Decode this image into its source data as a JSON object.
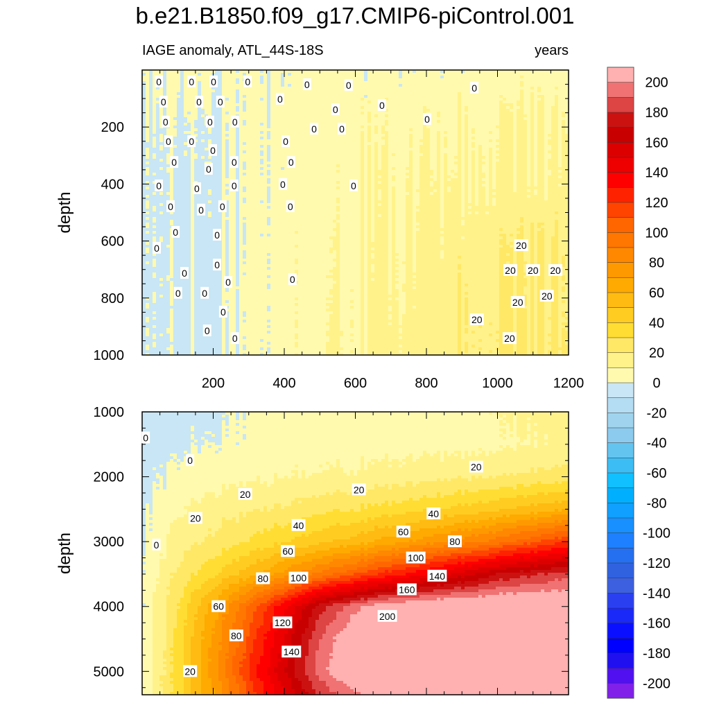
{
  "title": "b.e21.B1850.f09_g17.CMIP6-piControl.001",
  "subtitle_left": "IAGE anomaly, ATL_44S-18S",
  "subtitle_right": "years",
  "chart_data": {
    "type": "heatmap",
    "style": "filled contour",
    "ylabel": "depth",
    "xlim": [
      0,
      1200
    ],
    "x_ticks": [
      "200",
      "400",
      "600",
      "800",
      "1000",
      "1200"
    ],
    "x": [
      0,
      100,
      200,
      300,
      400,
      500,
      600,
      700,
      800,
      900,
      1000,
      1100,
      1200
    ],
    "panels": [
      {
        "name": "upper",
        "ylim": [
          0,
          1000
        ],
        "y_reversed": true,
        "y_ticks": [
          "200",
          "400",
          "600",
          "800",
          "1000"
        ],
        "depth": [
          0,
          200,
          400,
          600,
          800,
          1000
        ],
        "values": [
          [
            2,
            2,
            2,
            3,
            3,
            3,
            4,
            4,
            4,
            5,
            5,
            5,
            5
          ],
          [
            -2,
            -2,
            -2,
            3,
            4,
            5,
            6,
            7,
            8,
            9,
            10,
            10,
            10
          ],
          [
            -3,
            -3,
            -2,
            3,
            4,
            5,
            7,
            9,
            11,
            12,
            12,
            12,
            12
          ],
          [
            -3,
            -3,
            -3,
            3,
            5,
            6,
            9,
            11,
            13,
            15,
            18,
            19,
            19
          ],
          [
            -3,
            -3,
            -3,
            4,
            5,
            7,
            10,
            12,
            15,
            18,
            20,
            20,
            19
          ],
          [
            -3,
            -3,
            -3,
            2,
            5,
            8,
            11,
            14,
            16,
            18,
            21,
            22,
            21
          ]
        ],
        "contour_labels": [
          {
            "text": "0",
            "x": 47,
            "depth": 41
          },
          {
            "text": "0",
            "x": 139,
            "depth": 41
          },
          {
            "text": "0",
            "x": 201,
            "depth": 41
          },
          {
            "text": "0",
            "x": 297,
            "depth": 41
          },
          {
            "text": "0",
            "x": 464,
            "depth": 51
          },
          {
            "text": "0",
            "x": 581,
            "depth": 54
          },
          {
            "text": "0",
            "x": 935,
            "depth": 63
          },
          {
            "text": "0",
            "x": 60,
            "depth": 112
          },
          {
            "text": "0",
            "x": 160,
            "depth": 112
          },
          {
            "text": "0",
            "x": 220,
            "depth": 112
          },
          {
            "text": "0",
            "x": 388,
            "depth": 102
          },
          {
            "text": "0",
            "x": 544,
            "depth": 139
          },
          {
            "text": "0",
            "x": 675,
            "depth": 124
          },
          {
            "text": "0",
            "x": 66,
            "depth": 182
          },
          {
            "text": "0",
            "x": 191,
            "depth": 182
          },
          {
            "text": "0",
            "x": 261,
            "depth": 182
          },
          {
            "text": "0",
            "x": 484,
            "depth": 207
          },
          {
            "text": "0",
            "x": 562,
            "depth": 207
          },
          {
            "text": "0",
            "x": 802,
            "depth": 173
          },
          {
            "text": "0",
            "x": 74,
            "depth": 251
          },
          {
            "text": "0",
            "x": 139,
            "depth": 251
          },
          {
            "text": "0",
            "x": 199,
            "depth": 282
          },
          {
            "text": "0",
            "x": 404,
            "depth": 251
          },
          {
            "text": "0",
            "x": 90,
            "depth": 324
          },
          {
            "text": "0",
            "x": 187,
            "depth": 348
          },
          {
            "text": "0",
            "x": 259,
            "depth": 324
          },
          {
            "text": "0",
            "x": 419,
            "depth": 324
          },
          {
            "text": "0",
            "x": 47,
            "depth": 406
          },
          {
            "text": "0",
            "x": 154,
            "depth": 416
          },
          {
            "text": "0",
            "x": 259,
            "depth": 406
          },
          {
            "text": "0",
            "x": 396,
            "depth": 401
          },
          {
            "text": "0",
            "x": 595,
            "depth": 406
          },
          {
            "text": "0",
            "x": 80,
            "depth": 479
          },
          {
            "text": "0",
            "x": 166,
            "depth": 491
          },
          {
            "text": "0",
            "x": 226,
            "depth": 479
          },
          {
            "text": "0",
            "x": 417,
            "depth": 479
          },
          {
            "text": "0",
            "x": 94,
            "depth": 569
          },
          {
            "text": "0",
            "x": 211,
            "depth": 579
          },
          {
            "text": "0",
            "x": 41,
            "depth": 625
          },
          {
            "text": "0",
            "x": 119,
            "depth": 713
          },
          {
            "text": "0",
            "x": 211,
            "depth": 684
          },
          {
            "text": "0",
            "x": 242,
            "depth": 745
          },
          {
            "text": "0",
            "x": 423,
            "depth": 735
          },
          {
            "text": "0",
            "x": 101,
            "depth": 783
          },
          {
            "text": "0",
            "x": 176,
            "depth": 783
          },
          {
            "text": "0",
            "x": 228,
            "depth": 849
          },
          {
            "text": "0",
            "x": 183,
            "depth": 915
          },
          {
            "text": "0",
            "x": 261,
            "depth": 942
          },
          {
            "text": "20",
            "x": 1067,
            "depth": 616
          },
          {
            "text": "20",
            "x": 1036,
            "depth": 703
          },
          {
            "text": "20",
            "x": 1100,
            "depth": 703
          },
          {
            "text": "20",
            "x": 1163,
            "depth": 703
          },
          {
            "text": "20",
            "x": 1057,
            "depth": 815
          },
          {
            "text": "20",
            "x": 1139,
            "depth": 793
          },
          {
            "text": "20",
            "x": 942,
            "depth": 876
          },
          {
            "text": "20",
            "x": 1034,
            "depth": 942
          }
        ]
      },
      {
        "name": "lower",
        "ylim": [
          1000,
          5360
        ],
        "y_reversed": true,
        "y_ticks": [
          "1000",
          "2000",
          "3000",
          "4000",
          "5000"
        ],
        "depth": [
          1000,
          1500,
          2000,
          2500,
          3000,
          3500,
          4000,
          4500,
          5000,
          5360
        ],
        "values": [
          [
            -3,
            -3,
            -2,
            1,
            3,
            4,
            4,
            5,
            6,
            8,
            10,
            12,
            15
          ],
          [
            -3,
            -2,
            0,
            2,
            4,
            5,
            5,
            6,
            6,
            7,
            8,
            10,
            12
          ],
          [
            -3,
            2,
            6,
            8,
            10,
            11,
            12,
            14,
            17,
            19,
            20,
            22,
            25
          ],
          [
            -2,
            8,
            15,
            18,
            22,
            26,
            30,
            34,
            38,
            43,
            48,
            54,
            60
          ],
          [
            -2,
            15,
            22,
            30,
            40,
            47,
            55,
            65,
            75,
            85,
            95,
            108,
            120
          ],
          [
            0,
            22,
            38,
            55,
            75,
            92,
            110,
            125,
            140,
            155,
            170,
            178,
            185
          ],
          [
            0,
            30,
            65,
            100,
            138,
            175,
            198,
            210,
            215,
            218,
            218,
            218,
            218
          ],
          [
            0,
            33,
            72,
            112,
            152,
            190,
            212,
            220,
            220,
            220,
            220,
            220,
            220
          ],
          [
            0,
            35,
            75,
            120,
            160,
            195,
            215,
            220,
            220,
            220,
            220,
            220,
            220
          ],
          [
            0,
            35,
            70,
            110,
            150,
            180,
            198,
            212,
            220,
            220,
            220,
            220,
            220
          ]
        ],
        "contour_labels": [
          {
            "text": "0",
            "x": 10,
            "depth": 1400
          },
          {
            "text": "0",
            "x": 135,
            "depth": 1750
          },
          {
            "text": "20",
            "x": 290,
            "depth": 2270
          },
          {
            "text": "20",
            "x": 150,
            "depth": 2640
          },
          {
            "text": "20",
            "x": 610,
            "depth": 2200
          },
          {
            "text": "20",
            "x": 940,
            "depth": 1850
          },
          {
            "text": "40",
            "x": 440,
            "depth": 2750
          },
          {
            "text": "40",
            "x": 820,
            "depth": 2570
          },
          {
            "text": "60",
            "x": 410,
            "depth": 3150
          },
          {
            "text": "60",
            "x": 735,
            "depth": 2850
          },
          {
            "text": "80",
            "x": 340,
            "depth": 3570
          },
          {
            "text": "80",
            "x": 880,
            "depth": 3000
          },
          {
            "text": "100",
            "x": 440,
            "depth": 3560
          },
          {
            "text": "100",
            "x": 770,
            "depth": 3250
          },
          {
            "text": "120",
            "x": 395,
            "depth": 4250
          },
          {
            "text": "140",
            "x": 420,
            "depth": 4700
          },
          {
            "text": "140",
            "x": 830,
            "depth": 3530
          },
          {
            "text": "160",
            "x": 745,
            "depth": 3740
          },
          {
            "text": "200",
            "x": 690,
            "depth": 4150
          },
          {
            "text": "60",
            "x": 215,
            "depth": 4000
          },
          {
            "text": "80",
            "x": 265,
            "depth": 4450
          },
          {
            "text": "20",
            "x": 135,
            "depth": 5000
          },
          {
            "text": "0",
            "x": 40,
            "depth": 3050
          }
        ]
      }
    ],
    "colorbar": {
      "labels": [
        "200",
        "180",
        "160",
        "140",
        "120",
        "100",
        "80",
        "60",
        "40",
        "20",
        "0",
        "-20",
        "-40",
        "-60",
        "-80",
        "-100",
        "-120",
        "-140",
        "-160",
        "-180",
        "-200"
      ],
      "levels_step": 10,
      "range": [
        -200,
        200
      ],
      "colors": [
        "#FFB0B0",
        "#F07272",
        "#DD4444",
        "#CC1111",
        "#C80000",
        "#DD0000",
        "#EE0000",
        "#FF0000",
        "#FF2200",
        "#FF4400",
        "#FF6600",
        "#FF7700",
        "#FF8800",
        "#FF9900",
        "#FFAA00",
        "#FFBB11",
        "#FFCC22",
        "#FFDD33",
        "#FFE866",
        "#FFF28A",
        "#FFFAAE",
        "#C8E6F5",
        "#B4DCF2",
        "#A0D4EE",
        "#8CCBEE",
        "#64C4F0",
        "#3CBEF5",
        "#10C0FF",
        "#00B0FF",
        "#10A0FF",
        "#1890FF",
        "#1E80FF",
        "#2470F0",
        "#3062E0",
        "#3C60E0",
        "#2A40F0",
        "#1A28F8",
        "#0A10FF",
        "#0000FF",
        "#2010F0",
        "#5010F0",
        "#8020E8"
      ]
    }
  }
}
